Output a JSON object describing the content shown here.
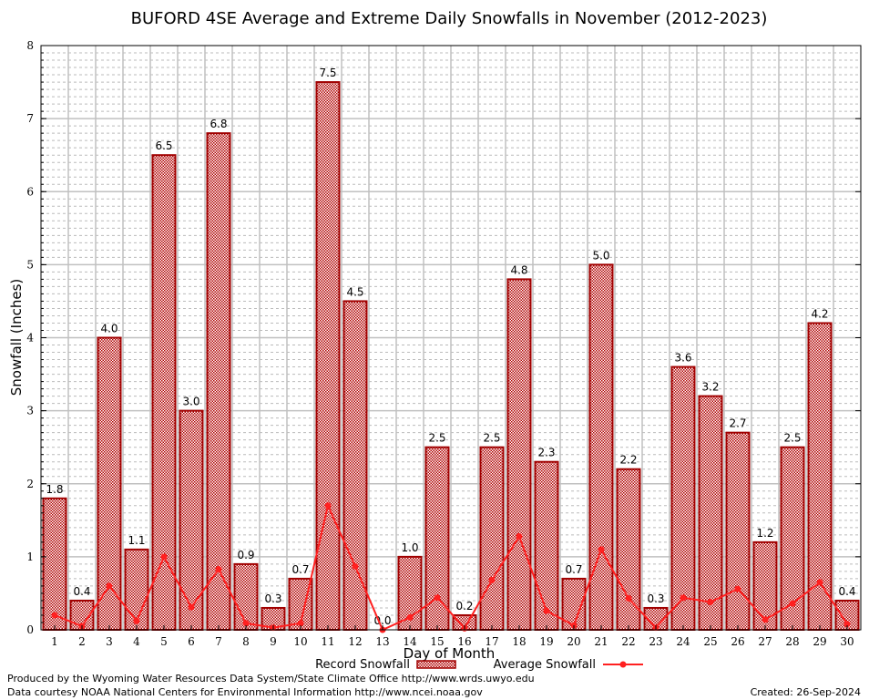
{
  "chart_data": {
    "type": "bar",
    "title": "BUFORD 4SE Average and Extreme Daily Snowfalls in November (2012-2023)",
    "xlabel": "Day of Month",
    "ylabel": "Snowfall (Inches)",
    "ylim": [
      0,
      8
    ],
    "yticks": [
      "0",
      "1",
      "2",
      "3",
      "4",
      "5",
      "6",
      "7",
      "8"
    ],
    "categories": [
      "1",
      "2",
      "3",
      "4",
      "5",
      "6",
      "7",
      "8",
      "9",
      "10",
      "11",
      "12",
      "13",
      "14",
      "15",
      "16",
      "17",
      "18",
      "19",
      "20",
      "21",
      "22",
      "23",
      "24",
      "25",
      "26",
      "27",
      "28",
      "29",
      "30"
    ],
    "series": [
      {
        "name": "Record Snowfall",
        "type": "bar",
        "color": "#a00000",
        "values": [
          1.8,
          0.4,
          4.0,
          1.1,
          6.5,
          3.0,
          6.8,
          0.9,
          0.3,
          0.7,
          7.5,
          4.5,
          0.0,
          1.0,
          2.5,
          0.2,
          2.5,
          4.8,
          2.3,
          0.7,
          5.0,
          2.2,
          0.3,
          3.6,
          3.2,
          2.7,
          1.2,
          2.5,
          4.2,
          0.4
        ],
        "labels": [
          "1.8",
          "0.4",
          "4.0",
          "1.1",
          "6.5",
          "3.0",
          "6.8",
          "0.9",
          "0.3",
          "0.7",
          "7.5",
          "4.5",
          "0.0",
          "1.0",
          "2.5",
          "0.2",
          "2.5",
          "4.8",
          "2.3",
          "0.7",
          "5.0",
          "2.2",
          "0.3",
          "3.6",
          "3.2",
          "2.7",
          "1.2",
          "2.5",
          "4.2",
          "0.4"
        ]
      },
      {
        "name": "Average Snowfall",
        "type": "line",
        "color": "#ff2020",
        "values": [
          0.2,
          0.05,
          0.6,
          0.12,
          1.0,
          0.31,
          0.83,
          0.09,
          0.03,
          0.09,
          1.7,
          0.87,
          0.0,
          0.17,
          0.44,
          0.02,
          0.68,
          1.28,
          0.26,
          0.06,
          1.1,
          0.43,
          0.03,
          0.44,
          0.38,
          0.56,
          0.14,
          0.36,
          0.65,
          0.08
        ]
      }
    ],
    "legend_position": "bottom-center",
    "grid": true
  },
  "footer": {
    "produced_by": "Produced by the Wyoming Water Resources Data System/State Climate Office http://www.wrds.uwyo.edu",
    "courtesy": "Data courtesy NOAA National Centers for Environmental Information http://www.ncei.noaa.gov",
    "created": "Created: 26-Sep-2024"
  }
}
